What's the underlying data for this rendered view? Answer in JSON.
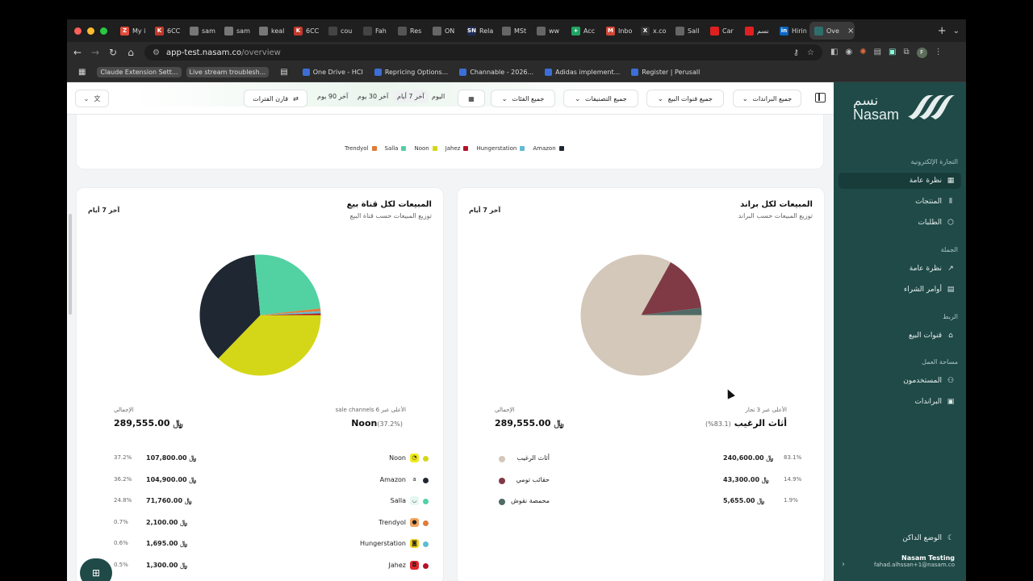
{
  "browser": {
    "tabs": [
      {
        "label": "My i",
        "color": "#e04b3a",
        "glyph": "Z"
      },
      {
        "label": "6CC",
        "color": "#c0392b",
        "glyph": "K"
      },
      {
        "label": "sam",
        "color": "#777777",
        "glyph": ""
      },
      {
        "label": "sam",
        "color": "#777777",
        "glyph": ""
      },
      {
        "label": "keal",
        "color": "#777777",
        "glyph": ""
      },
      {
        "label": "6CC",
        "color": "#c0392b",
        "glyph": "K"
      },
      {
        "label": "cou",
        "color": "#444444",
        "glyph": ""
      },
      {
        "label": "Fah",
        "color": "#444444",
        "glyph": ""
      },
      {
        "label": "Res",
        "color": "#555555",
        "glyph": ""
      },
      {
        "label": "ON",
        "color": "#666666",
        "glyph": ""
      },
      {
        "label": "Rela",
        "color": "#1e2a5a",
        "glyph": "SN"
      },
      {
        "label": "MSt",
        "color": "#666666",
        "glyph": ""
      },
      {
        "label": "ww",
        "color": "#666666",
        "glyph": ""
      },
      {
        "label": "Acc",
        "color": "#1fa463",
        "glyph": "+"
      },
      {
        "label": "Inbo",
        "color": "#d14836",
        "glyph": "M"
      },
      {
        "label": "x.co",
        "color": "#333333",
        "glyph": "X"
      },
      {
        "label": "Sall",
        "color": "#666666",
        "glyph": ""
      },
      {
        "label": "Car",
        "color": "#e02020",
        "glyph": ""
      },
      {
        "label": "نسم",
        "color": "#e02020",
        "glyph": ""
      },
      {
        "label": "Hirin",
        "color": "#0a66c2",
        "glyph": "in"
      },
      {
        "label": "Ove",
        "color": "#2f6f6b",
        "glyph": ""
      }
    ],
    "active_tab_label": "",
    "url_host": "app-test.nasam.co",
    "url_path": "/overview",
    "bookmarks": [
      {
        "label": "Claude Extension Sett...",
        "chip": true
      },
      {
        "label": "Live stream troublesh...",
        "chip": true
      },
      {
        "label": "One Drive - HCI",
        "chip": false
      },
      {
        "label": "Repricing Options...",
        "chip": false
      },
      {
        "label": "Channable - 2026...",
        "chip": false
      },
      {
        "label": "Adidas implement...",
        "chip": false
      },
      {
        "label": "Register | Perusall",
        "chip": false
      }
    ]
  },
  "sidebar": {
    "brand_ar": "نسم",
    "brand_en": "Nasam",
    "sections": [
      {
        "title": "التجارة الإلكترونية",
        "items": [
          {
            "label": "نظرة عامة",
            "icon": "grid-icon",
            "active": true
          },
          {
            "label": "المنتجات",
            "icon": "barcode-icon",
            "active": false
          },
          {
            "label": "الطلبات",
            "icon": "box-icon",
            "active": false
          }
        ]
      },
      {
        "title": "الجملة",
        "items": [
          {
            "label": "نظرة عامة",
            "icon": "trend-icon",
            "active": false
          },
          {
            "label": "أوامر الشراء",
            "icon": "clipboard-icon",
            "active": false
          }
        ]
      },
      {
        "title": "الربط",
        "items": [
          {
            "label": "قنوات البيع",
            "icon": "store-icon",
            "active": false
          }
        ]
      },
      {
        "title": "مساحة العمل",
        "items": [
          {
            "label": "المستخدمون",
            "icon": "users-icon",
            "active": false
          },
          {
            "label": "البراندات",
            "icon": "briefcase-icon",
            "active": false
          }
        ]
      }
    ],
    "dark_mode": "الوضع الداكن",
    "user_name": "Nasam Testing",
    "user_email": "fahad.alhssan+1@nasam.co"
  },
  "filters": {
    "brands": "جميع البراندات",
    "channels": "جميع قنوات البيع",
    "classifications": "جميع التصنيفات",
    "categories": "جميع الفئات",
    "ranges": [
      "اليوم",
      "آخر 7 أيام",
      "آخر 30 يوم",
      "آخر 90 يوم"
    ],
    "selected_range": "آخر 7 أيام",
    "compare": "قارن الفترات"
  },
  "top_legend": [
    {
      "name": "Amazon",
      "color": "#1f2732"
    },
    {
      "name": "Hungerstation",
      "color": "#5fbcd3"
    },
    {
      "name": "Jahez",
      "color": "#b4122a"
    },
    {
      "name": "Noon",
      "color": "#d4d717"
    },
    {
      "name": "Salla",
      "color": "#52d1a3"
    },
    {
      "name": "Trendyol",
      "color": "#e07b39"
    }
  ],
  "channel_card": {
    "title": "المبيعات لكل قناة بيع",
    "subtitle": "توزيع المبيعات حسب قناة البيع",
    "range": "آخر 7 أيام",
    "total_label": "الإجمالي",
    "total": "289,555.00",
    "top_label": "الأعلى عبر 6 sale channels",
    "top_name": "Noon",
    "top_pct": "(37.2%)",
    "currency": "﷼",
    "rows": [
      {
        "name": "Noon",
        "amount": "107,800.00",
        "pct": "37.2%",
        "color": "#d4d717",
        "glyph": "◔",
        "glyph_bg": "#f0e91a"
      },
      {
        "name": "Amazon",
        "amount": "104,900.00",
        "pct": "36.2%",
        "color": "#1f2732",
        "glyph": "a",
        "glyph_bg": "#ffffff"
      },
      {
        "name": "Salla",
        "amount": "71,760.00",
        "pct": "24.8%",
        "color": "#52d1a3",
        "glyph": "◡",
        "glyph_bg": "#e6f7f2"
      },
      {
        "name": "Trendyol",
        "amount": "2,100.00",
        "pct": "0.7%",
        "color": "#e07b39",
        "glyph": "●",
        "glyph_bg": "#f4a25d"
      },
      {
        "name": "Hungerstation",
        "amount": "1,695.00",
        "pct": "0.6%",
        "color": "#5fbcd3",
        "glyph": "◙",
        "glyph_bg": "#f3d31a"
      },
      {
        "name": "Jahez",
        "amount": "1,300.00",
        "pct": "0.5%",
        "color": "#b4122a",
        "glyph": "◘",
        "glyph_bg": "#e3262f"
      }
    ]
  },
  "brand_card": {
    "title": "المبيعات لكل براند",
    "subtitle": "توزيع المبيعات حسب البراند",
    "range": "آخر 7 أيام",
    "total_label": "الإجمالي",
    "total": "289,555.00",
    "top_label": "الأعلى عبر 3 تجار",
    "top_name": "أثاث الرغيب",
    "top_pct": "(83.1%)",
    "currency": "﷼",
    "rows": [
      {
        "name": "أثاث الرغيب",
        "amount": "240,600.00",
        "pct": "83.1%",
        "color": "#d3c8b9"
      },
      {
        "name": "حقائب تومي",
        "amount": "43,300.00",
        "pct": "14.9%",
        "color": "#7f3a45"
      },
      {
        "name": "محمصة نقوش",
        "amount": "5,655.00",
        "pct": "1.9%",
        "color": "#506a66"
      }
    ]
  },
  "chart_data": [
    {
      "type": "pie",
      "title": "المبيعات لكل قناة بيع",
      "categories": [
        "Noon",
        "Amazon",
        "Salla",
        "Trendyol",
        "Hungerstation",
        "Jahez"
      ],
      "values": [
        107800,
        104900,
        71760,
        2100,
        1695,
        1300
      ],
      "colors": [
        "#d4d717",
        "#1f2732",
        "#52d1a3",
        "#e07b39",
        "#5fbcd3",
        "#b4122a"
      ]
    },
    {
      "type": "pie",
      "title": "المبيعات لكل براند",
      "categories": [
        "أثاث الرغيب",
        "حقائب تومي",
        "محمصة نقوش"
      ],
      "values": [
        240600,
        43300,
        5655
      ],
      "colors": [
        "#d3c8b9",
        "#7f3a45",
        "#506a66"
      ]
    }
  ]
}
